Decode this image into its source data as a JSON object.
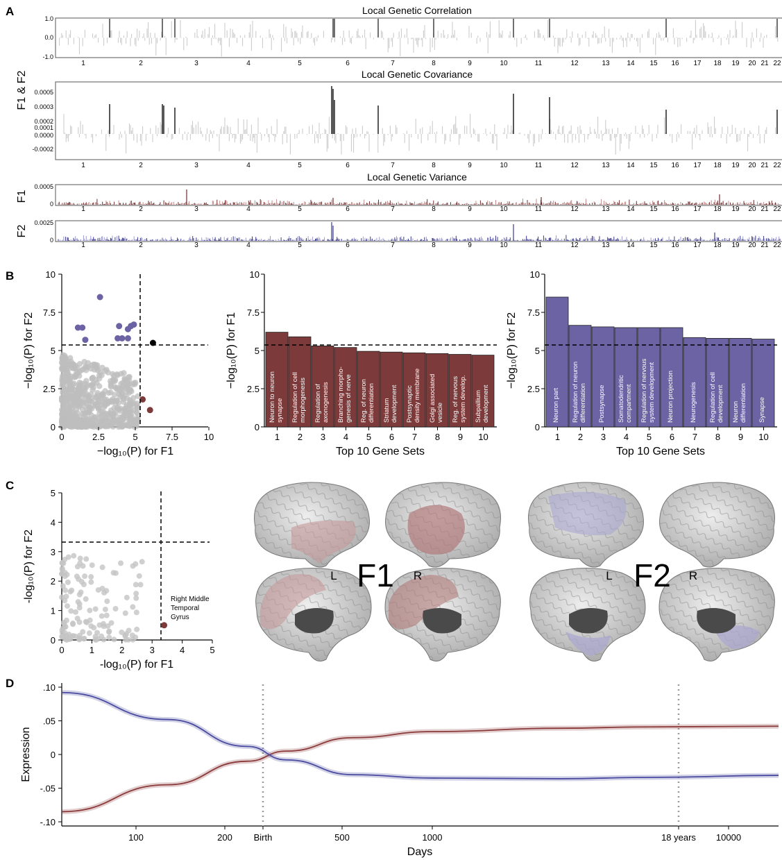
{
  "colors": {
    "f1": "#7d3a3a",
    "f1_line": "#8b3a3a",
    "f2": "#6b63a3",
    "f2_line": "#4a4aa0",
    "grey": "#c8c8c8",
    "dark": "#000000",
    "brain_f1": "#c49a9a",
    "brain_f2": "#a9a7cf"
  },
  "panel_labels": [
    "A",
    "B",
    "C",
    "D"
  ],
  "panelA": {
    "correlation": {
      "title": "Local Genetic Correlation",
      "y_ticks": [
        "1.0",
        "0.0",
        "-1.0"
      ],
      "ylim": [
        -1,
        1
      ]
    },
    "covariance": {
      "title": "Local Genetic Covariance",
      "y_ticks": [
        "0.0005",
        "0.0003",
        "0.0002",
        "0.0001",
        "0.0000",
        "-0.0002"
      ]
    },
    "variance": {
      "title": "Local Genetic Variance",
      "f1_ticks": [
        "0.0005",
        "0"
      ],
      "f2_ticks": [
        "0.0025",
        "0"
      ]
    },
    "ylabel_top": "F1 & F2",
    "ylabel_f1": "F1",
    "ylabel_f2": "F2",
    "chromosomes": [
      "1",
      "2",
      "3",
      "4",
      "5",
      "6",
      "7",
      "8",
      "9",
      "10",
      "11",
      "12",
      "13",
      "14",
      "15",
      "16",
      "17",
      "18",
      "19",
      "20",
      "21",
      "22"
    ]
  },
  "chart_data": [
    {
      "id": "B-scatter",
      "type": "scatter",
      "xlabel": "−log₁₀(P) for F1",
      "ylabel": "−log₁₀(P) for F2",
      "xlim": [
        0,
        10
      ],
      "ylim": [
        0,
        10
      ],
      "x_ticks": [
        "0",
        "2.5",
        "5",
        "7.5",
        "10"
      ],
      "y_ticks": [
        "0",
        "2.5",
        "5",
        "7.5",
        "10"
      ],
      "threshold_x": 5.3,
      "threshold_y": 5.3,
      "f2_significant": [
        [
          2.6,
          8.5
        ],
        [
          1.1,
          6.5
        ],
        [
          1.4,
          6.5
        ],
        [
          3.9,
          6.6
        ],
        [
          4.7,
          6.6
        ],
        [
          4.9,
          6.7
        ],
        [
          4.5,
          6.4
        ],
        [
          1.6,
          5.7
        ],
        [
          3.8,
          5.8
        ],
        [
          4.1,
          5.8
        ],
        [
          4.5,
          5.8
        ]
      ],
      "both_significant": [
        [
          6.2,
          5.5
        ]
      ],
      "f1_significant": [
        [
          5.5,
          1.8
        ],
        [
          6.0,
          1.1
        ]
      ]
    },
    {
      "id": "B-bar-F1",
      "type": "bar",
      "xlabel": "Top 10 Gene Sets",
      "ylabel": "−log₁₀(P) for F1",
      "ylim": [
        0,
        10
      ],
      "y_ticks": [
        "0",
        "2.5",
        "5",
        "7.5",
        "10"
      ],
      "threshold": 5.3,
      "categories": [
        "1",
        "2",
        "3",
        "4",
        "5",
        "6",
        "7",
        "8",
        "9",
        "10"
      ],
      "values": [
        6.2,
        5.9,
        5.3,
        5.2,
        4.95,
        4.9,
        4.85,
        4.8,
        4.75,
        4.7
      ],
      "bar_labels": [
        [
          "Neuron to neuron",
          "synapse"
        ],
        [
          "Regulation of cell",
          "morphogenesis"
        ],
        [
          "Regulation of",
          "axonogenesis"
        ],
        [
          "Branching morpho-",
          "genesis of nerve"
        ],
        [
          "Reg. of neuron",
          "differentiation"
        ],
        [
          "Striatum",
          "development"
        ],
        [
          "Postsynaptic",
          "density membrane"
        ],
        [
          "Golgi associated",
          "vesicle"
        ],
        [
          "Reg. of nervous",
          "system develop."
        ],
        [
          "Subpallium",
          "development"
        ]
      ]
    },
    {
      "id": "B-bar-F2",
      "type": "bar",
      "xlabel": "Top 10 Gene Sets",
      "ylabel": "−log₁₀(P) for F2",
      "ylim": [
        0,
        10
      ],
      "y_ticks": [
        "0",
        "2.5",
        "5",
        "7.5",
        "10"
      ],
      "threshold": 5.3,
      "categories": [
        "1",
        "2",
        "3",
        "4",
        "5",
        "6",
        "7",
        "8",
        "9",
        "10"
      ],
      "values": [
        8.5,
        6.65,
        6.55,
        6.5,
        6.5,
        6.5,
        5.85,
        5.8,
        5.8,
        5.75
      ],
      "bar_labels": [
        [
          "Neuron part"
        ],
        [
          "Regulation of neuron",
          "differentiation"
        ],
        [
          "Postsynapse"
        ],
        [
          "Somatodendritic",
          "compartment"
        ],
        [
          "Regulation of nervous",
          "system development"
        ],
        [
          "Neuron projection"
        ],
        [
          "Neurogenesis"
        ],
        [
          "Regulation of cell",
          "development"
        ],
        [
          "Neuron",
          "differentiation"
        ],
        [
          "Synapse"
        ]
      ]
    },
    {
      "id": "C-scatter",
      "type": "scatter",
      "xlabel": "-log₁₀(P) for F1",
      "ylabel": "-log₁₀(P) for F2",
      "xlim": [
        0,
        5
      ],
      "ylim": [
        0,
        5
      ],
      "x_ticks": [
        "0",
        "1",
        "2",
        "3",
        "4",
        "5"
      ],
      "y_ticks": [
        "0",
        "1",
        "2",
        "3",
        "4",
        "5"
      ],
      "threshold_x": 3.3,
      "threshold_y": 3.3,
      "highlight": {
        "x": 3.4,
        "y": 0.5,
        "label": [
          "Right Middle",
          "Temporal",
          "Gyrus"
        ]
      }
    },
    {
      "id": "D-lines",
      "type": "line",
      "xlabel": "Days",
      "ylabel": "Expression",
      "x_scale": "log",
      "x_ticks": [
        "100",
        "200",
        "Birth",
        "500",
        "1000",
        "18 years",
        "10000"
      ],
      "y_ticks": [
        ".10",
        ".05",
        "0",
        "-.05",
        "-.10"
      ],
      "ylim": [
        -0.11,
        0.11
      ],
      "vlines": [
        "Birth",
        "18 years"
      ],
      "series": [
        {
          "color_key": "f1_line",
          "x": [
            40,
            100,
            200,
            280,
            500,
            1000,
            3000,
            6600,
            20000
          ],
          "y": [
            -0.085,
            -0.045,
            -0.01,
            0.005,
            0.025,
            0.034,
            0.039,
            0.041,
            0.042
          ]
        },
        {
          "color_key": "f2_line",
          "x": [
            40,
            100,
            200,
            280,
            500,
            1000,
            3000,
            6600,
            20000
          ],
          "y": [
            0.092,
            0.052,
            0.012,
            -0.008,
            -0.03,
            -0.035,
            -0.036,
            -0.034,
            -0.031
          ]
        }
      ]
    }
  ],
  "panelC_brains": {
    "f1_label": "F1",
    "f2_label": "F2",
    "left": "L",
    "right": "R"
  }
}
